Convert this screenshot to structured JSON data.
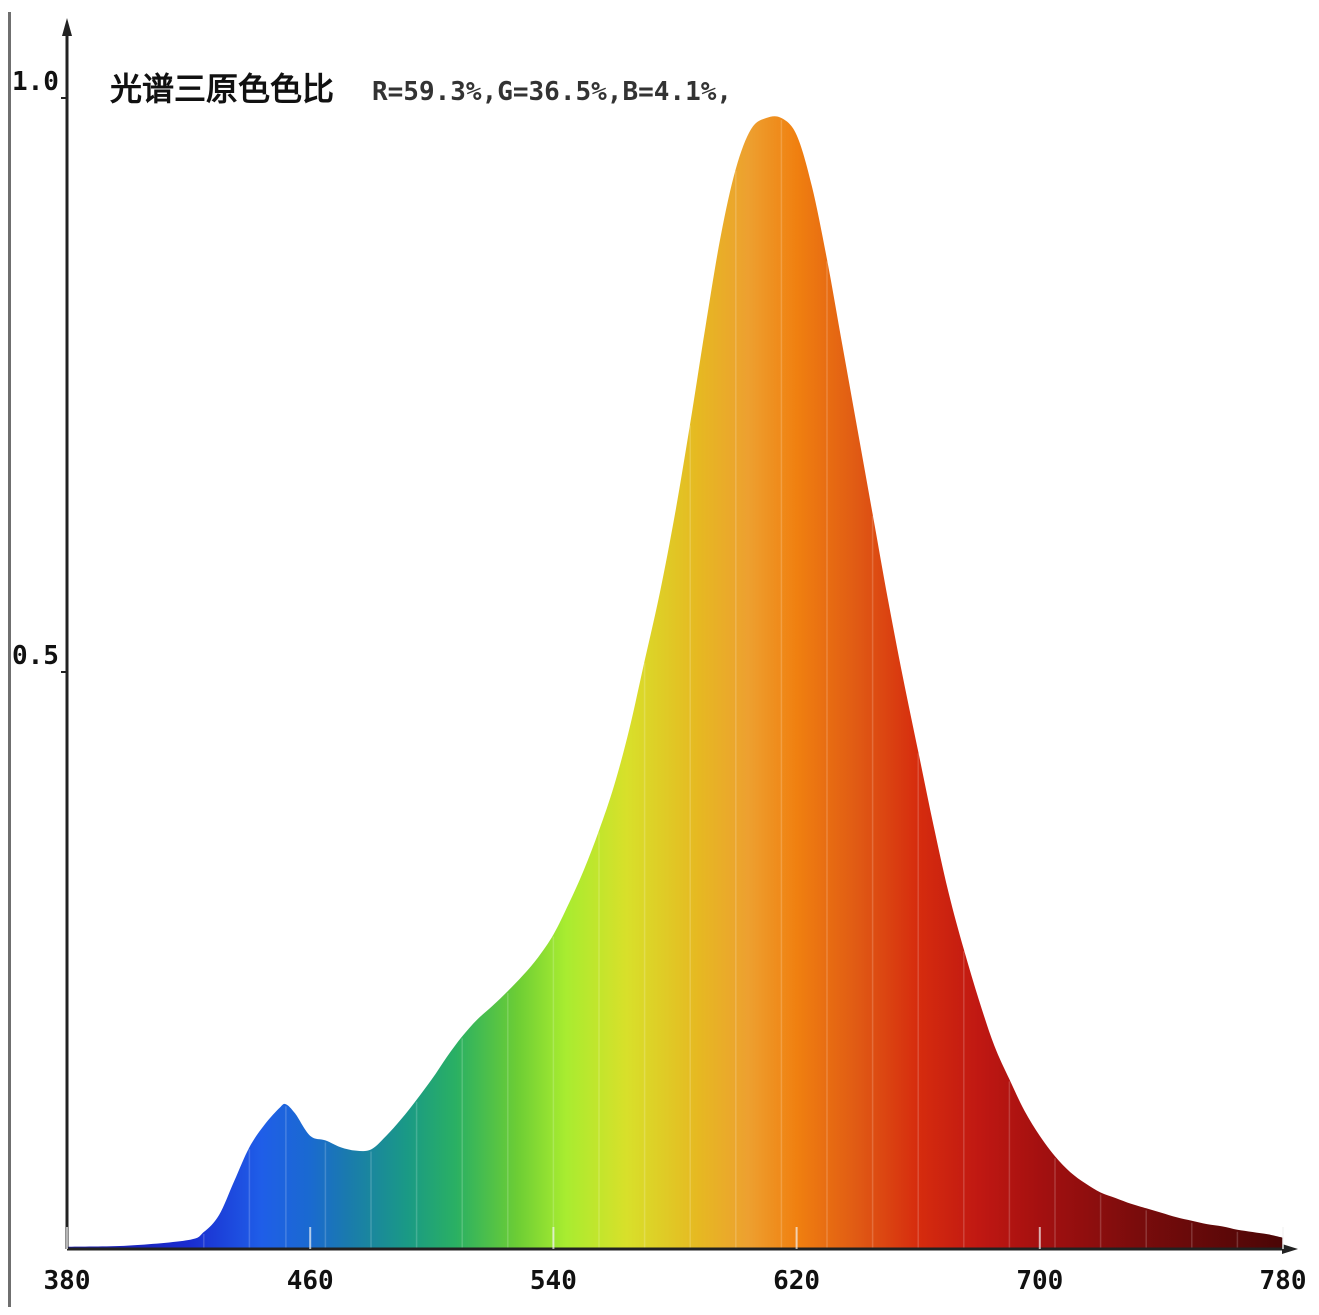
{
  "chart_data": {
    "type": "area",
    "title": "光谱三原色色比",
    "subtitle": "R=59.3%,G=36.5%,B=4.1%,",
    "xlabel": "",
    "ylabel": "",
    "xlim": [
      380,
      780
    ],
    "ylim": [
      0,
      1.0
    ],
    "x_ticks": [
      380,
      460,
      540,
      620,
      700,
      780
    ],
    "y_ticks": [
      0.5,
      1.0
    ],
    "y_tick_labels": [
      "0.5",
      "1.0"
    ],
    "grid": false,
    "fill": "wavelength-color gradient",
    "x": [
      380,
      400,
      420,
      425,
      430,
      435,
      440,
      445,
      450,
      452,
      455,
      460,
      465,
      470,
      475,
      480,
      485,
      490,
      495,
      500,
      505,
      510,
      515,
      520,
      525,
      530,
      535,
      540,
      545,
      550,
      555,
      560,
      565,
      570,
      575,
      580,
      585,
      590,
      595,
      600,
      605,
      610,
      615,
      620,
      625,
      630,
      635,
      640,
      645,
      650,
      655,
      660,
      665,
      670,
      675,
      680,
      685,
      690,
      695,
      700,
      705,
      710,
      715,
      720,
      725,
      730,
      735,
      740,
      745,
      750,
      755,
      760,
      765,
      770,
      775,
      780
    ],
    "y": [
      0.002,
      0.003,
      0.008,
      0.015,
      0.03,
      0.06,
      0.09,
      0.11,
      0.125,
      0.128,
      0.12,
      0.1,
      0.096,
      0.09,
      0.087,
      0.088,
      0.1,
      0.115,
      0.132,
      0.15,
      0.17,
      0.188,
      0.203,
      0.215,
      0.228,
      0.242,
      0.258,
      0.278,
      0.305,
      0.335,
      0.37,
      0.41,
      0.46,
      0.52,
      0.58,
      0.65,
      0.73,
      0.815,
      0.895,
      0.955,
      0.99,
      1.0,
      1.0,
      0.985,
      0.94,
      0.875,
      0.8,
      0.725,
      0.65,
      0.575,
      0.505,
      0.44,
      0.375,
      0.315,
      0.265,
      0.22,
      0.18,
      0.15,
      0.122,
      0.1,
      0.082,
      0.068,
      0.058,
      0.05,
      0.045,
      0.04,
      0.036,
      0.032,
      0.028,
      0.025,
      0.022,
      0.02,
      0.017,
      0.015,
      0.013,
      0.01
    ]
  },
  "colors": {
    "background": "#ffffff",
    "axis": "#222222",
    "text": "#111111"
  }
}
